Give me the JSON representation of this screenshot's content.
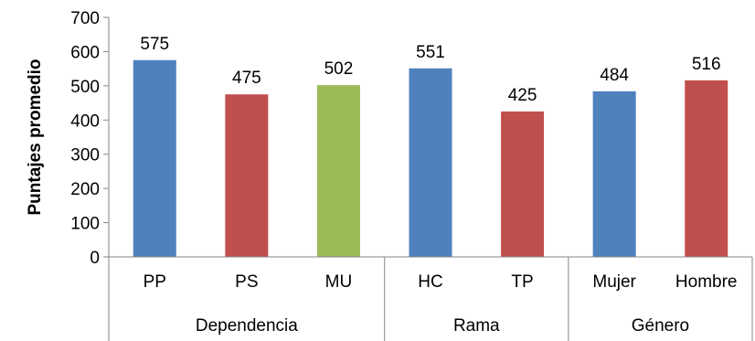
{
  "chart_data": {
    "type": "bar",
    "ylabel": "Puntajes promedio",
    "ylim": [
      0,
      700
    ],
    "yticks": [
      0,
      100,
      200,
      300,
      400,
      500,
      600,
      700
    ],
    "grid": false,
    "legend": "none",
    "categories": [
      "PP",
      "PS",
      "MU",
      "HC",
      "TP",
      "Mujer",
      "Hombre"
    ],
    "values": [
      575,
      475,
      502,
      551,
      425,
      484,
      516
    ],
    "bar_colors": [
      "#4f81bd",
      "#c0504d",
      "#9bbb59",
      "#4f81bd",
      "#c0504d",
      "#4f81bd",
      "#c0504d"
    ],
    "groups": [
      {
        "label": "Dependencia",
        "count": 3
      },
      {
        "label": "Rama",
        "count": 2
      },
      {
        "label": "Género",
        "count": 2
      }
    ]
  }
}
